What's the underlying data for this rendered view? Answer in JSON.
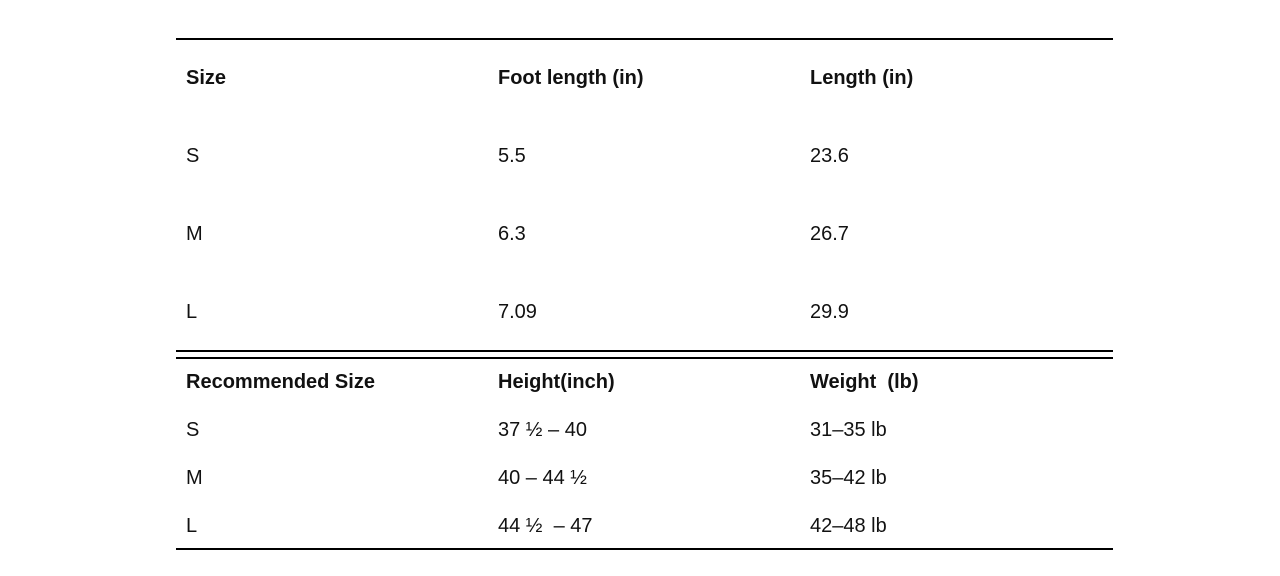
{
  "tables": [
    {
      "header": [
        "Size",
        "Foot length (in)",
        "Length (in)"
      ],
      "rows": [
        [
          "S",
          "5.5",
          "23.6"
        ],
        [
          "M",
          "6.3",
          "26.7"
        ],
        [
          "L",
          "7.09",
          "29.9"
        ]
      ]
    },
    {
      "header": [
        "Recommended Size",
        "Height(inch)",
        "Weight  (lb)"
      ],
      "rows": [
        [
          "S",
          "37 ½ – 40",
          "31–35 lb"
        ],
        [
          "M",
          "40 – 44 ½",
          "35–42 lb"
        ],
        [
          "L",
          "44 ½  – 47",
          "42–48 lb"
        ]
      ]
    }
  ]
}
